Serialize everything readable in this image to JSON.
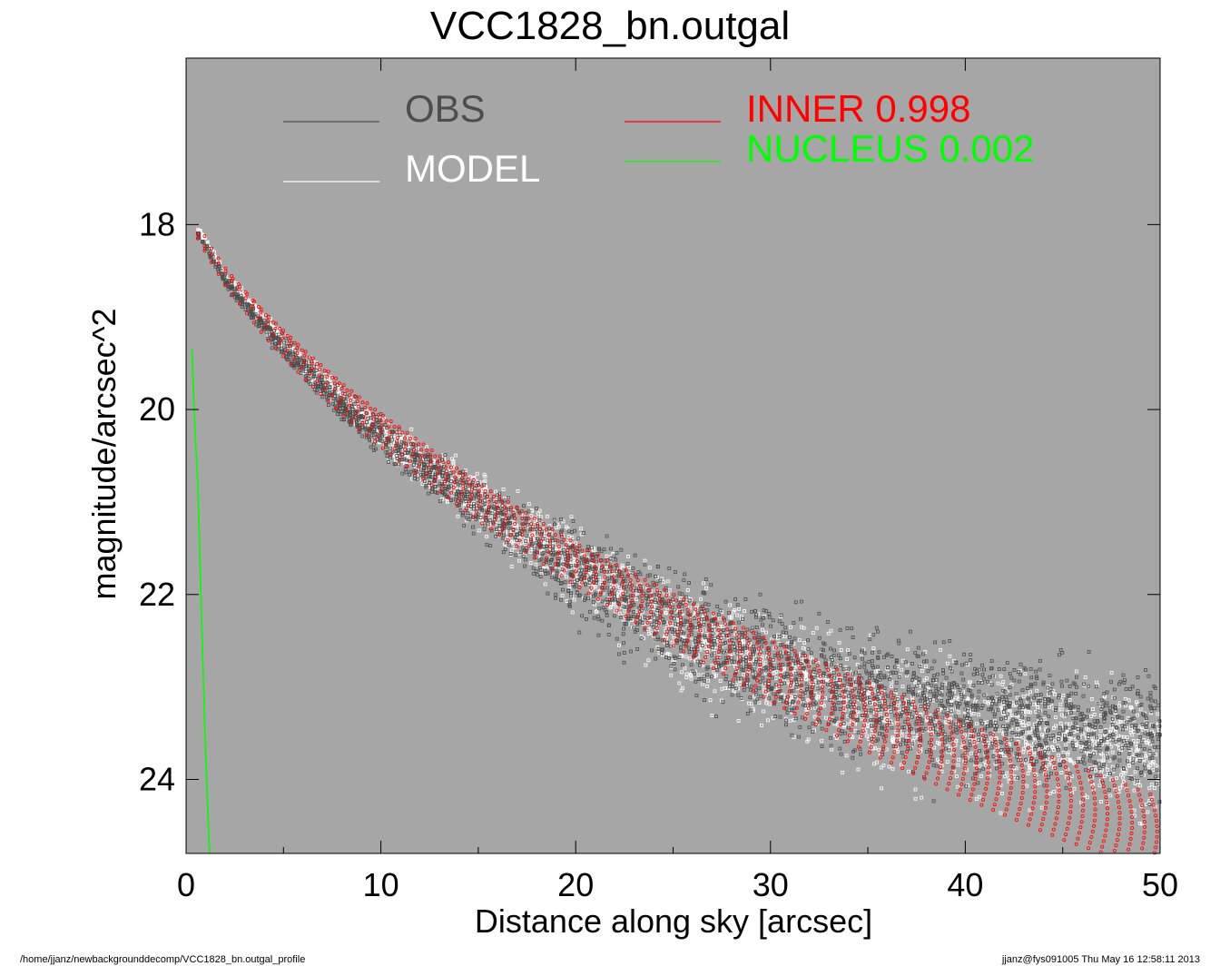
{
  "chart_data": {
    "type": "scatter",
    "title": "VCC1828_bn.outgal",
    "xlabel": "Distance along sky [arcsec]",
    "ylabel": "magnitude/arcsec^2",
    "xlim": [
      0,
      50
    ],
    "ylim": [
      24.8,
      16.2
    ],
    "y_inverted": true,
    "x_ticks": [
      0,
      10,
      20,
      30,
      40,
      50
    ],
    "y_ticks": [
      18,
      20,
      22,
      24
    ],
    "grid": false,
    "background": "#a6a6a6",
    "legend_position": "top",
    "legend": [
      {
        "label": "OBS",
        "color": "#4d4d4d"
      },
      {
        "label": "MODEL",
        "color": "#ffffff"
      },
      {
        "label": "INNER  0.998",
        "color": "#ff0000"
      },
      {
        "label": "NUCLEUS  0.002",
        "color": "#00ff00"
      }
    ],
    "series": [
      {
        "name": "INNER",
        "color": "#ff0000",
        "kind": "band",
        "x": [
          0.6,
          1,
          2,
          4,
          6,
          8,
          10,
          15,
          20,
          25,
          30,
          35,
          40,
          45,
          50
        ],
        "y_upper": [
          18.1,
          18.25,
          18.5,
          18.95,
          19.35,
          19.72,
          20.05,
          20.8,
          21.45,
          22.0,
          22.5,
          22.95,
          23.4,
          23.8,
          24.2
        ],
        "y_lower": [
          18.15,
          18.3,
          18.65,
          19.2,
          19.65,
          20.05,
          20.4,
          21.2,
          21.9,
          22.55,
          23.15,
          23.7,
          24.2,
          24.65,
          25.0
        ]
      },
      {
        "name": "OBS",
        "color": "#4d4d4d",
        "kind": "scatter",
        "x": [
          0.6,
          2,
          4,
          6,
          8,
          10,
          15,
          20,
          25,
          30,
          35,
          40,
          45,
          50
        ],
        "y_center": [
          18.1,
          18.6,
          19.1,
          19.55,
          19.95,
          20.3,
          21.05,
          21.75,
          22.35,
          22.8,
          23.1,
          23.3,
          23.4,
          23.5
        ],
        "y_spread": [
          0.05,
          0.1,
          0.15,
          0.2,
          0.25,
          0.3,
          0.45,
          0.7,
          0.9,
          1.0,
          1.05,
          1.1,
          1.1,
          1.15
        ]
      },
      {
        "name": "MODEL",
        "color": "#ffffff",
        "kind": "scatter",
        "x": [
          0.6,
          2,
          4,
          6,
          8,
          10,
          15,
          20,
          25,
          30,
          35,
          40,
          45,
          50
        ],
        "y_center": [
          18.05,
          18.55,
          19.05,
          19.5,
          19.9,
          20.25,
          21.0,
          21.7,
          22.35,
          22.85,
          23.2,
          23.45,
          23.6,
          23.75
        ],
        "y_spread": [
          0.05,
          0.1,
          0.15,
          0.2,
          0.25,
          0.3,
          0.45,
          0.65,
          0.85,
          0.95,
          1.0,
          1.05,
          1.05,
          1.1
        ]
      },
      {
        "name": "NUCLEUS",
        "color": "#00ff00",
        "kind": "line",
        "x": [
          0.3,
          0.45,
          0.6,
          0.8,
          1.0,
          1.2
        ],
        "y": [
          19.35,
          20.2,
          20.8,
          22.3,
          23.7,
          24.8
        ]
      }
    ]
  },
  "footer": {
    "left": "/home/jjanz/newbackgrounddecomp/VCC1828_bn.outgal_profile",
    "right": "jjanz@fys091005  Thu May 16 12:58:11 2013"
  }
}
